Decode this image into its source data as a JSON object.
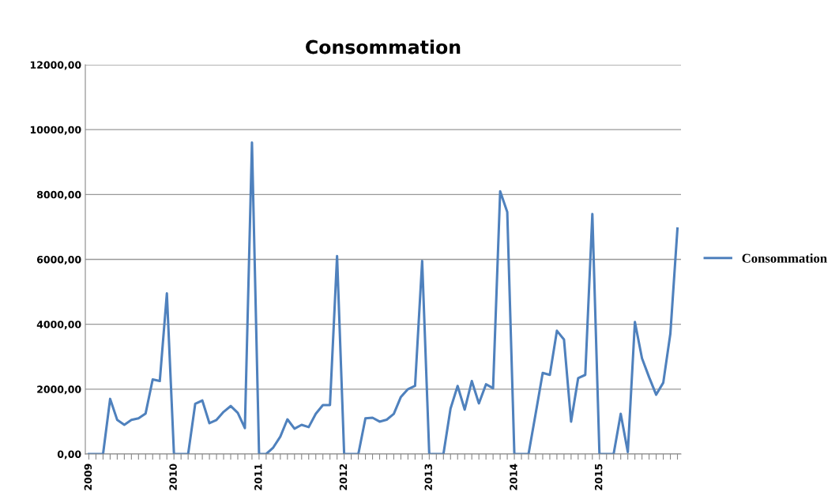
{
  "chart_data": {
    "type": "line",
    "title": "Consommation",
    "categories": [
      "2009",
      null,
      null,
      null,
      null,
      null,
      null,
      null,
      null,
      null,
      null,
      null,
      "2010",
      null,
      null,
      null,
      null,
      null,
      null,
      null,
      null,
      null,
      null,
      null,
      "2011",
      null,
      null,
      null,
      null,
      null,
      null,
      null,
      null,
      null,
      null,
      null,
      "2012",
      null,
      null,
      null,
      null,
      null,
      null,
      null,
      null,
      null,
      null,
      null,
      "2013",
      null,
      null,
      null,
      null,
      null,
      null,
      null,
      null,
      null,
      null,
      null,
      "2014",
      null,
      null,
      null,
      null,
      null,
      null,
      null,
      null,
      null,
      null,
      null,
      "2015",
      null,
      null,
      null,
      null,
      null,
      null,
      null,
      null,
      null,
      null,
      null
    ],
    "series": [
      {
        "name": "Consommation",
        "color": "#4f81bd",
        "values": [
          0,
          0,
          0,
          1700,
          1050,
          900,
          1050,
          1100,
          1250,
          2300,
          2250,
          4950,
          0,
          0,
          0,
          1550,
          1650,
          950,
          1050,
          1300,
          1480,
          1270,
          800,
          9600,
          0,
          0,
          200,
          540,
          1070,
          780,
          900,
          830,
          1240,
          1510,
          1510,
          6100,
          0,
          0,
          0,
          1100,
          1120,
          1000,
          1060,
          1240,
          1760,
          2000,
          2100,
          5950,
          0,
          0,
          0,
          1400,
          2100,
          1370,
          2250,
          1560,
          2150,
          2030,
          8100,
          7460,
          0,
          0,
          0,
          1240,
          2500,
          2440,
          3800,
          3530,
          1000,
          2340,
          2440,
          7400,
          0,
          0,
          0,
          1240,
          60,
          4070,
          2950,
          2370,
          1830,
          2200,
          3710,
          6950
        ]
      }
    ],
    "ylim": [
      0,
      12000
    ],
    "yticks": [
      {
        "value": 0,
        "label": "0,00"
      },
      {
        "value": 2000,
        "label": "2000,00"
      },
      {
        "value": 4000,
        "label": "4000,00"
      },
      {
        "value": 6000,
        "label": "6000,00"
      },
      {
        "value": 8000,
        "label": "8000,00"
      },
      {
        "value": 10000,
        "label": "10000,00"
      },
      {
        "value": 12000,
        "label": "12000,00"
      }
    ],
    "grid": "y",
    "legend": "right",
    "marker": "none",
    "line_style": "solid"
  }
}
